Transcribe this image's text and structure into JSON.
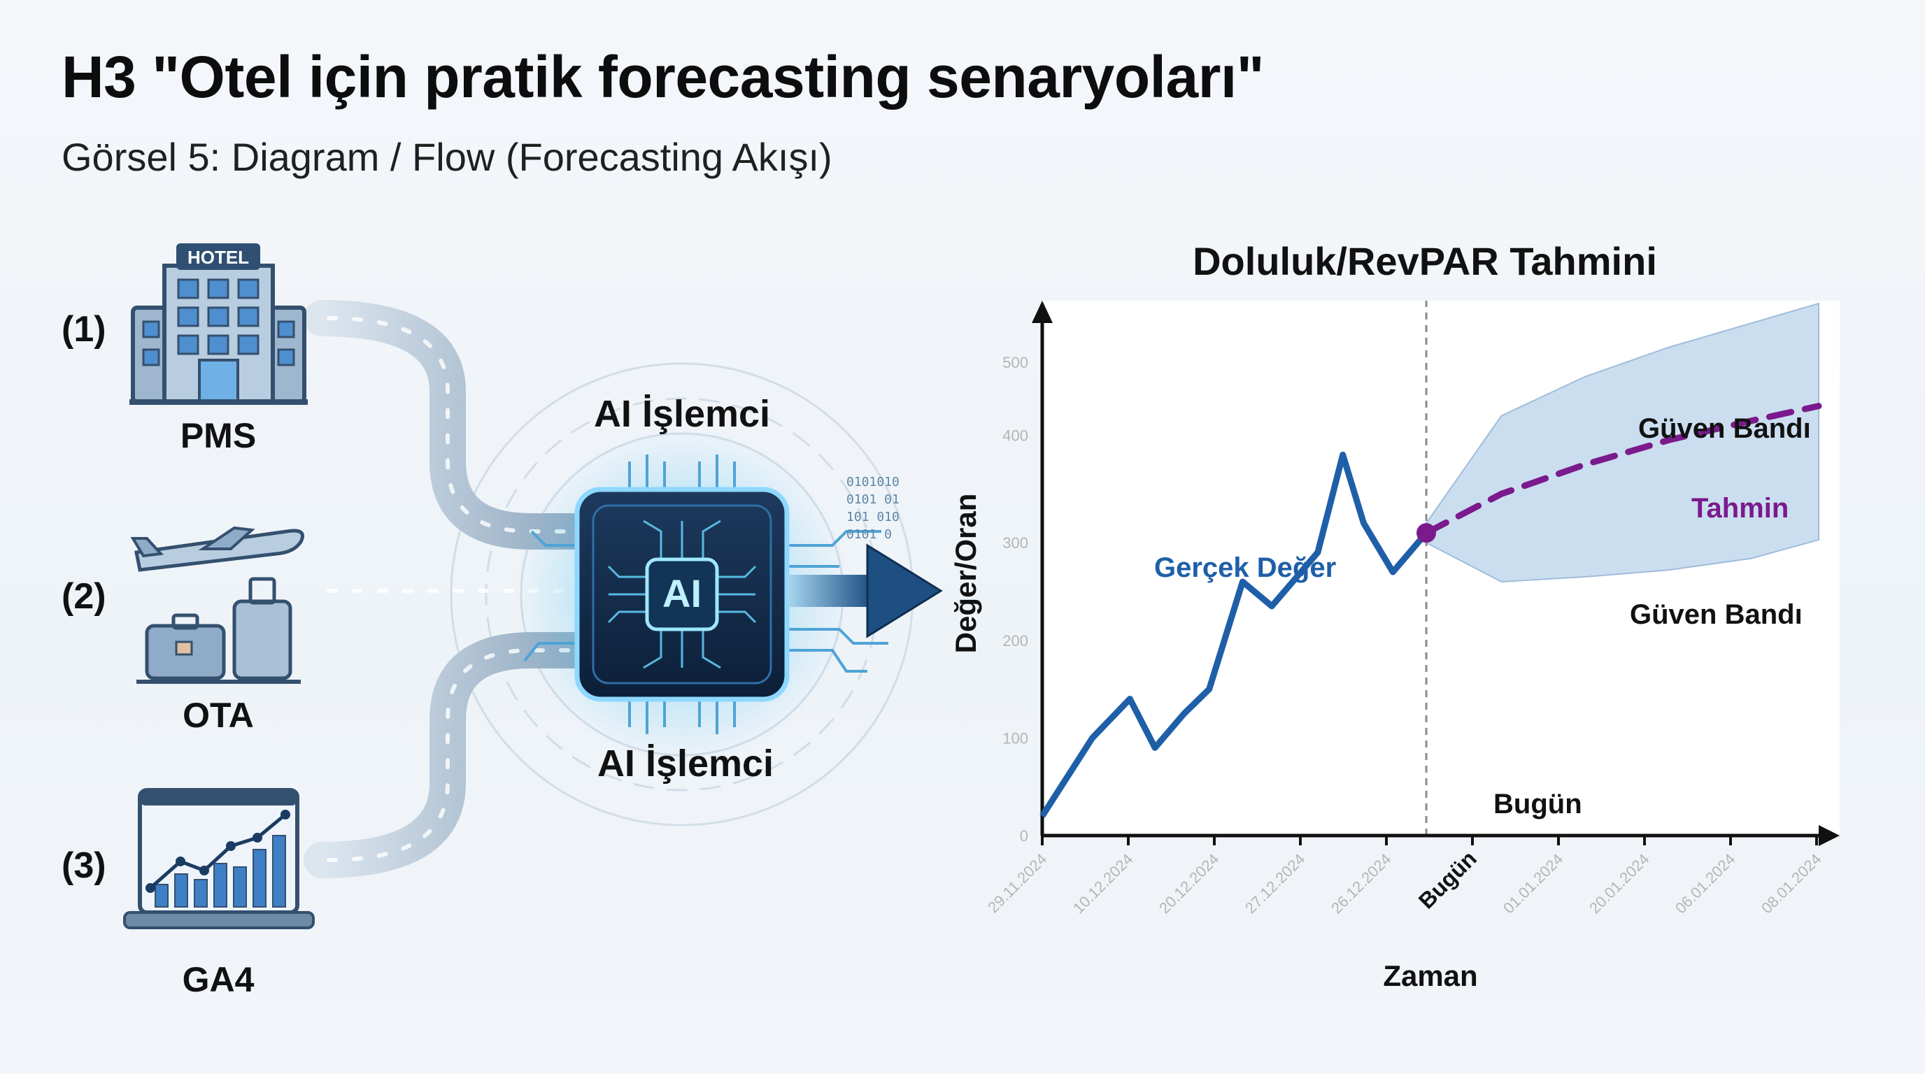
{
  "title": "H3 \"Otel için pratik forecasting senaryoları\"",
  "subtitle": "Görsel 5: Diagram / Flow (Forecasting Akışı)",
  "sources": [
    {
      "number": "(1)",
      "label": "PMS",
      "icon": "hotel-icon",
      "sign": "HOTEL"
    },
    {
      "number": "(2)",
      "label": "OTA",
      "icon": "plane-luggage-icon"
    },
    {
      "number": "(3)",
      "label": "GA4",
      "icon": "analytics-laptop-icon"
    }
  ],
  "processor": {
    "label_top": "AI İşlemci",
    "label_bottom": "AI İşlemci",
    "chip_text": "AI",
    "binary_text": [
      "0101010",
      "0101 01",
      "101 010",
      "0101 0"
    ]
  },
  "chart_data": {
    "type": "line",
    "title": "Doluluk/RevPAR Tahmini",
    "xlabel": "Zaman",
    "ylabel": "Değer/Oran",
    "y_ticks": [
      "500",
      "400",
      "300",
      "200",
      "100",
      "0"
    ],
    "x_ticks": [
      "29.11.2024",
      "10.12.2024",
      "20.12.2024",
      "27.12.2024",
      "26.12.2024",
      "Bugün",
      "01.01.2024",
      "20.01.2024",
      "06.01.2024",
      "08.01.2024"
    ],
    "today_tick_index": 5,
    "series": [
      {
        "name": "Gerçek Değer",
        "color": "#1e5fa8",
        "style": "solid",
        "x": [
          0,
          0.6,
          1.05,
          1.35,
          1.7,
          2.0,
          2.4,
          2.75,
          3.05,
          3.3,
          3.6,
          3.85,
          4.2,
          4.6
        ],
        "y": [
          20,
          100,
          140,
          90,
          125,
          150,
          260,
          235,
          265,
          290,
          390,
          320,
          270,
          310
        ]
      },
      {
        "name": "Tahmin",
        "color": "#7b1a8c",
        "style": "dashed",
        "x": [
          4.6,
          5.5,
          6.5,
          7.5,
          8.5,
          9.3
        ],
        "y": [
          310,
          350,
          380,
          405,
          425,
          440
        ]
      }
    ],
    "band": {
      "name": "Güven Bandı",
      "color": "#b9d3ea",
      "x": [
        4.6,
        5.5,
        6.5,
        7.5,
        8.5,
        9.3
      ],
      "upper": [
        320,
        430,
        470,
        500,
        525,
        545
      ],
      "lower": [
        300,
        260,
        265,
        272,
        284,
        303
      ]
    },
    "labels": {
      "actual": "Gerçek Değer",
      "forecast": "Tahmin",
      "band_upper": "Güven Bandı",
      "band_lower": "Güven Bandı",
      "today": "Bugün"
    },
    "today_marker": {
      "x": 4.6,
      "y": 310
    },
    "xlim": [
      0,
      9.3
    ],
    "ylim": [
      0,
      530
    ]
  }
}
